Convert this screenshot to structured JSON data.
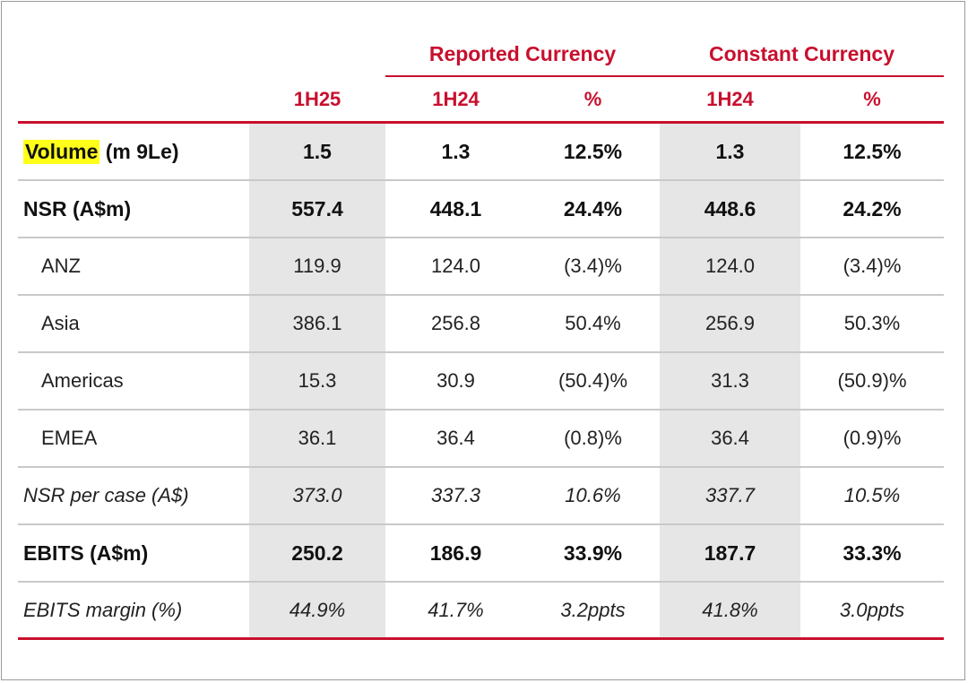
{
  "groups": {
    "reported": "Reported Currency",
    "constant": "Constant Currency"
  },
  "headers": [
    "",
    "1H25",
    "1H24",
    "%",
    "1H24",
    "%"
  ],
  "rows": [
    {
      "label_highlight": "Volume",
      "label_rest": " (m 9Le)",
      "values": [
        "1.5",
        "1.3",
        "12.5%",
        "1.3",
        "12.5%"
      ]
    },
    {
      "label": "NSR (A$m)",
      "values": [
        "557.4",
        "448.1",
        "24.4%",
        "448.6",
        "24.2%"
      ]
    },
    {
      "label": "ANZ",
      "values": [
        "119.9",
        "124.0",
        "(3.4)%",
        "124.0",
        "(3.4)%"
      ]
    },
    {
      "label": "Asia",
      "values": [
        "386.1",
        "256.8",
        "50.4%",
        "256.9",
        "50.3%"
      ]
    },
    {
      "label": "Americas",
      "values": [
        "15.3",
        "30.9",
        "(50.4)%",
        "31.3",
        "(50.9)%"
      ]
    },
    {
      "label": "EMEA",
      "values": [
        "36.1",
        "36.4",
        "(0.8)%",
        "36.4",
        "(0.9)%"
      ]
    },
    {
      "label": "NSR per case (A$)",
      "values": [
        "373.0",
        "337.3",
        "10.6%",
        "337.7",
        "10.5%"
      ]
    },
    {
      "label": "EBITS (A$m)",
      "values": [
        "250.2",
        "186.9",
        "33.9%",
        "187.7",
        "33.3%"
      ]
    },
    {
      "label": "EBITS margin (%)",
      "values": [
        "44.9%",
        "41.7%",
        "3.2ppts",
        "41.8%",
        "3.0ppts"
      ]
    }
  ],
  "colors": {
    "accent": "#c8102e",
    "shade": "#e6e6e6",
    "highlight": "#ffff1a"
  }
}
